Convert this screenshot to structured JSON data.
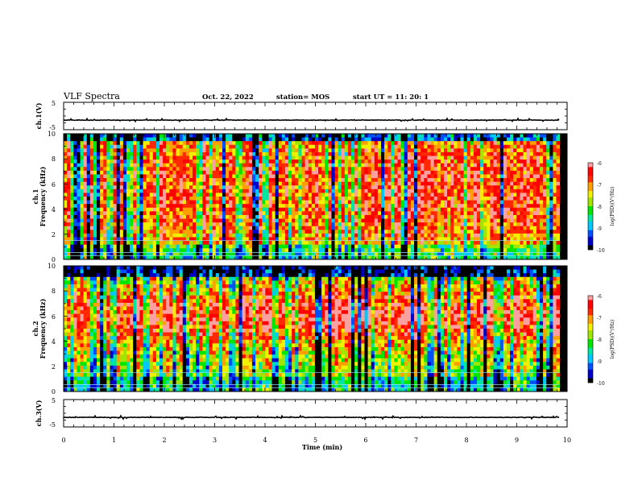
{
  "header": {
    "title": "VLF Spectra",
    "date": "Oct. 22, 2022",
    "station": "station= MOS",
    "start_ut": "start  UT =   11: 20: 1"
  },
  "chart_data": [
    {
      "type": "line",
      "name": "waveform-ch1",
      "ylabel": "ch.1(V)",
      "ylim": [
        -5,
        5
      ],
      "y_ticks": [
        "5",
        "-5"
      ],
      "xlim": [
        0,
        10
      ],
      "baseline": -1.5
    },
    {
      "type": "heatmap",
      "name": "spectrogram-ch1",
      "ylabel": [
        "ch.1",
        "Frequency  (kHz)"
      ],
      "ylim": [
        0,
        10
      ],
      "y_ticks": [
        "0",
        "2",
        "4",
        "6",
        "8",
        "10"
      ],
      "xlim": [
        0,
        10
      ],
      "data_extent_min": 9.85,
      "colorbar": {
        "label": "log(PSD)(V²/Hz)",
        "range": [
          -10,
          -6
        ],
        "ticks": [
          "-6",
          "-7",
          "-8",
          "-9",
          "-10"
        ]
      }
    },
    {
      "type": "heatmap",
      "name": "spectrogram-ch2",
      "ylabel": [
        "ch.2",
        "Frequency  (kHz)"
      ],
      "ylim": [
        0,
        10
      ],
      "y_ticks": [
        "0",
        "2",
        "4",
        "6",
        "8",
        "10"
      ],
      "xlim": [
        0,
        10
      ],
      "data_extent_min": 9.85,
      "colorbar": {
        "label": "log(PSD)(V²/Hz)",
        "range": [
          -10,
          -6
        ],
        "ticks": [
          "-6",
          "-7",
          "-8",
          "-9",
          "-10"
        ]
      }
    },
    {
      "type": "line",
      "name": "waveform-ch3",
      "ylabel": "ch.3(V)",
      "ylim": [
        -5,
        5
      ],
      "y_ticks": [
        "5",
        "-5"
      ],
      "xlim": [
        0,
        10
      ],
      "baseline": -1.5
    }
  ],
  "x_axis": {
    "label": "Time  (min)",
    "ticks": [
      "0",
      "1",
      "2",
      "3",
      "4",
      "5",
      "6",
      "7",
      "8",
      "9",
      "10"
    ]
  },
  "colormap": [
    "#000000",
    "#0000c8",
    "#0050ff",
    "#00c8ff",
    "#00e6a0",
    "#00e600",
    "#a0e600",
    "#f0f000",
    "#ffa000",
    "#ff2800",
    "#ff0000",
    "#ffa0a0"
  ]
}
